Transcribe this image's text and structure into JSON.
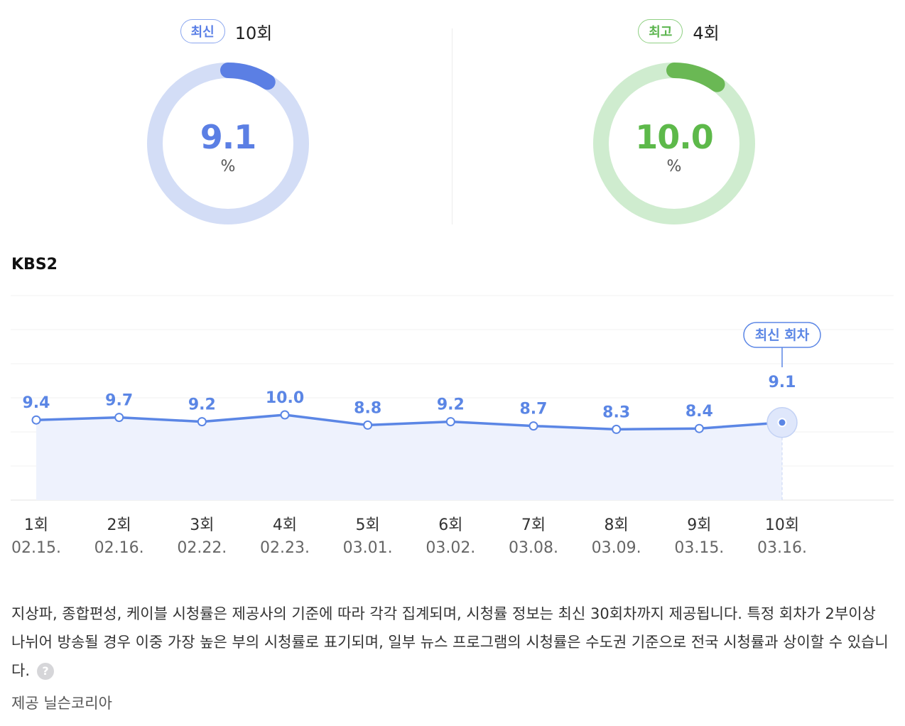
{
  "gauges": {
    "latest": {
      "badge": "최신",
      "episode": "10회",
      "value": "9.1",
      "ratio": 0.091,
      "unit": "%",
      "accent": "#5b7fe4",
      "track": "#d3ddf6",
      "text_color": "#5b7fe4"
    },
    "highest": {
      "badge": "최고",
      "episode": "4회",
      "value": "10.0",
      "ratio": 0.1,
      "unit": "%",
      "accent": "#6ab854",
      "track": "#cfeccf",
      "text_color": "#5db94a"
    }
  },
  "channel": "KBS2",
  "chart_data": {
    "type": "area",
    "categories": [
      "1회",
      "2회",
      "3회",
      "4회",
      "5회",
      "6회",
      "7회",
      "8회",
      "9회",
      "10회"
    ],
    "dates": [
      "02.15.",
      "02.16.",
      "02.22.",
      "02.23.",
      "03.01.",
      "03.02.",
      "03.08.",
      "03.09.",
      "03.15.",
      "03.16."
    ],
    "values": [
      9.4,
      9.7,
      9.2,
      10.0,
      8.8,
      9.2,
      8.7,
      8.3,
      8.4,
      9.1
    ],
    "value_labels": [
      "9.4",
      "9.7",
      "9.2",
      "10.0",
      "8.8",
      "9.2",
      "8.7",
      "8.3",
      "8.4",
      "9.1"
    ],
    "highlight_index": 9,
    "highlight_label": "최신 회차",
    "line_color": "#5b86e5",
    "fill_color": "#eef2fd",
    "grid": true
  },
  "notice": "지상파, 종합편성, 케이블 시청률은 제공사의 기준에 따라 각각 집계되며, 시청률 정보는 최신 30회차까지 제공됩니다. 특정 회차가 2부이상 나뉘어 방송될 경우 이중 가장 높은 부의 시청률로 표기되며, 일부 뉴스 프로그램의 시청률은 수도권 기준으로 전국 시청률과 상이할 수 있습니다.",
  "help_icon": "?",
  "source": "제공 닐슨코리아"
}
